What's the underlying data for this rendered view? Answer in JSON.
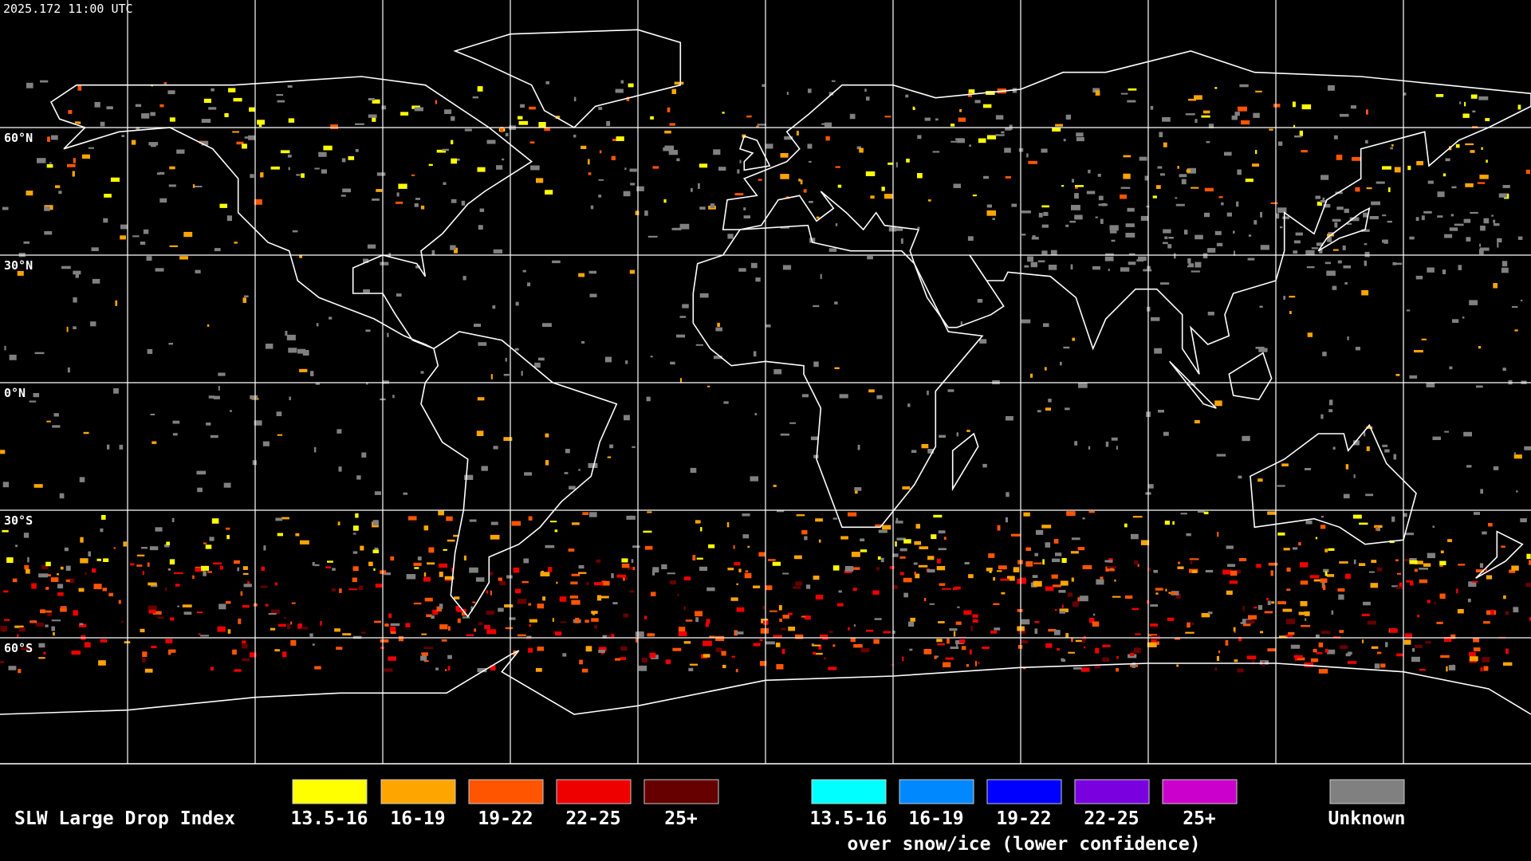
{
  "header": {
    "timestamp": "2025.172 11:00 UTC"
  },
  "map": {
    "latitude_labels": [
      "60°N",
      "30°N",
      "0°N",
      "30°S",
      "60°S"
    ]
  },
  "legend": {
    "title": "SLW Large Drop Index",
    "liquid": [
      {
        "label": "13.5-16",
        "color": "#ffff00"
      },
      {
        "label": "16-19",
        "color": "#ffa500"
      },
      {
        "label": "19-22",
        "color": "#ff5500"
      },
      {
        "label": "22-25",
        "color": "#ee0000"
      },
      {
        "label": "25+",
        "color": "#660000"
      }
    ],
    "snow_ice": {
      "items": [
        {
          "label": "13.5-16",
          "color": "#00ffff"
        },
        {
          "label": "16-19",
          "color": "#0088ff"
        },
        {
          "label": "19-22",
          "color": "#0000ff"
        },
        {
          "label": "22-25",
          "color": "#7a00e0"
        },
        {
          "label": "25+",
          "color": "#cc00cc"
        }
      ],
      "caption": "over snow/ice (lower confidence)"
    },
    "unknown": {
      "label": "Unknown",
      "color": "#808080"
    }
  }
}
